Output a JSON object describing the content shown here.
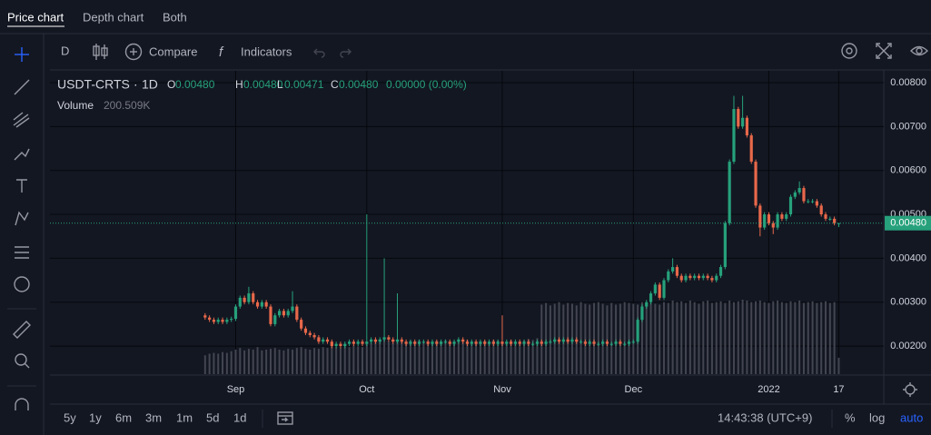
{
  "tabs": [
    "Price chart",
    "Depth chart",
    "Both"
  ],
  "toolbar": {
    "interval": "D",
    "compare": "Compare",
    "indicators": "Indicators"
  },
  "legend": {
    "symbol": "USDT-CRTS",
    "interval": "1D",
    "ohlc": [
      {
        "key": "O",
        "value": "0.00480"
      },
      {
        "key": "H",
        "value": "0.00480"
      },
      {
        "key": "L",
        "value": "0.00471"
      },
      {
        "key": "C",
        "value": "0.00480"
      }
    ],
    "change": "0.00000 (0.00%)",
    "volume_name": "Volume",
    "volume_value": "200.509K"
  },
  "chart_data": {
    "type": "candlestick",
    "open": [
      0.0027,
      0.00265,
      0.0026,
      0.00255,
      0.0026,
      0.00255,
      0.0026,
      0.00262,
      0.0029,
      0.0031,
      0.003,
      0.0032,
      0.003,
      0.0029,
      0.003,
      0.0029,
      0.0025,
      0.0027,
      0.0028,
      0.0027,
      0.0028,
      0.0029,
      0.0026,
      0.0024,
      0.0023,
      0.00225,
      0.0022,
      0.0021,
      0.00215,
      0.0021,
      0.002,
      0.00205,
      0.002,
      0.00205,
      0.0021,
      0.00205,
      0.0021,
      0.00205,
      0.0021,
      0.00215,
      0.0021,
      0.00215,
      0.0022,
      0.00215,
      0.0021,
      0.00215,
      0.0021,
      0.00205,
      0.0021,
      0.00205,
      0.0021,
      0.0021,
      0.00205,
      0.0021,
      0.00205,
      0.0021,
      0.0021,
      0.00205,
      0.0021,
      0.00215,
      0.0021,
      0.00205,
      0.0021,
      0.00205,
      0.0021,
      0.00205,
      0.0021,
      0.00205,
      0.0021,
      0.00205,
      0.0021,
      0.00205,
      0.0021,
      0.00205,
      0.0021,
      0.00205,
      0.00205,
      0.0021,
      0.00205,
      0.0021,
      0.0021,
      0.00215,
      0.0021,
      0.00215,
      0.0021,
      0.00215,
      0.0021,
      0.0021,
      0.00205,
      0.0021,
      0.00205,
      0.00205,
      0.0021,
      0.00205,
      0.00205,
      0.0021,
      0.00205,
      0.00205,
      0.0021,
      0.0021,
      0.0026,
      0.0029,
      0.003,
      0.0032,
      0.0034,
      0.0031,
      0.0035,
      0.0037,
      0.0038,
      0.0036,
      0.0035,
      0.0036,
      0.00355,
      0.0036,
      0.00355,
      0.0036,
      0.00355,
      0.0035,
      0.0036,
      0.0038,
      0.0048,
      0.0062,
      0.0074,
      0.007,
      0.0072,
      0.0068,
      0.0062,
      0.0052,
      0.0047,
      0.005,
      0.0048,
      0.0047,
      0.005,
      0.0049,
      0.005,
      0.0054,
      0.0055,
      0.0056,
      0.0053,
      0.0053,
      0.0053,
      0.0052,
      0.005,
      0.0049,
      0.0049,
      0.0048
    ],
    "high": [
      0.00275,
      0.0027,
      0.00265,
      0.00265,
      0.00265,
      0.00265,
      0.00267,
      0.00295,
      0.00315,
      0.00315,
      0.00335,
      0.00325,
      0.00305,
      0.00305,
      0.00305,
      0.00295,
      0.00275,
      0.00285,
      0.00285,
      0.00285,
      0.00325,
      0.00295,
      0.00265,
      0.00245,
      0.00235,
      0.0023,
      0.00225,
      0.0022,
      0.0022,
      0.00215,
      0.0021,
      0.0021,
      0.0021,
      0.00215,
      0.00215,
      0.00215,
      0.00215,
      0.005,
      0.0022,
      0.0022,
      0.0022,
      0.004,
      0.00225,
      0.0022,
      0.0032,
      0.0022,
      0.00215,
      0.00215,
      0.00215,
      0.00215,
      0.00215,
      0.00215,
      0.00215,
      0.00215,
      0.00215,
      0.00215,
      0.00215,
      0.00215,
      0.0022,
      0.0022,
      0.00215,
      0.00215,
      0.00215,
      0.00215,
      0.00215,
      0.00215,
      0.00215,
      0.00215,
      0.0027,
      0.00215,
      0.00215,
      0.00215,
      0.00215,
      0.00215,
      0.00215,
      0.0021,
      0.00215,
      0.00215,
      0.00215,
      0.00215,
      0.0022,
      0.0022,
      0.0022,
      0.0022,
      0.0022,
      0.0022,
      0.00215,
      0.00215,
      0.00215,
      0.00215,
      0.0021,
      0.00215,
      0.00215,
      0.0021,
      0.00215,
      0.00215,
      0.0021,
      0.00215,
      0.00215,
      0.00265,
      0.00295,
      0.00305,
      0.00325,
      0.00345,
      0.00345,
      0.00355,
      0.00375,
      0.004,
      0.00385,
      0.00365,
      0.00365,
      0.00365,
      0.00365,
      0.00365,
      0.00365,
      0.00365,
      0.0036,
      0.00365,
      0.00385,
      0.00485,
      0.00625,
      0.0077,
      0.00745,
      0.0077,
      0.00725,
      0.00685,
      0.00625,
      0.00525,
      0.00505,
      0.00505,
      0.00485,
      0.00505,
      0.00505,
      0.00505,
      0.00545,
      0.00555,
      0.00575,
      0.00565,
      0.00535,
      0.00535,
      0.00535,
      0.00525,
      0.00505,
      0.00495,
      0.00495,
      0.0048
    ],
    "low": [
      0.0026,
      0.00255,
      0.0025,
      0.0025,
      0.0025,
      0.0025,
      0.00255,
      0.00257,
      0.00285,
      0.00295,
      0.00295,
      0.00295,
      0.00285,
      0.00285,
      0.00285,
      0.00245,
      0.00245,
      0.00265,
      0.00265,
      0.00265,
      0.00275,
      0.00255,
      0.00235,
      0.00225,
      0.0022,
      0.00215,
      0.00205,
      0.00205,
      0.00205,
      0.00195,
      0.00195,
      0.00195,
      0.00195,
      0.002,
      0.002,
      0.002,
      0.002,
      0.002,
      0.00205,
      0.00205,
      0.00205,
      0.0021,
      0.0021,
      0.00205,
      0.00205,
      0.00205,
      0.002,
      0.002,
      0.002,
      0.002,
      0.00205,
      0.002,
      0.002,
      0.002,
      0.002,
      0.00205,
      0.002,
      0.002,
      0.00205,
      0.00205,
      0.002,
      0.002,
      0.002,
      0.002,
      0.002,
      0.002,
      0.002,
      0.002,
      0.002,
      0.002,
      0.002,
      0.002,
      0.002,
      0.002,
      0.002,
      0.002,
      0.002,
      0.002,
      0.002,
      0.00205,
      0.00205,
      0.00205,
      0.00205,
      0.00205,
      0.00205,
      0.00205,
      0.00205,
      0.002,
      0.002,
      0.002,
      0.002,
      0.002,
      0.002,
      0.002,
      0.002,
      0.002,
      0.002,
      0.002,
      0.00205,
      0.00205,
      0.00255,
      0.00285,
      0.00295,
      0.00315,
      0.00305,
      0.00305,
      0.00345,
      0.00365,
      0.00355,
      0.00345,
      0.00345,
      0.0035,
      0.0035,
      0.0035,
      0.0035,
      0.0035,
      0.00345,
      0.00345,
      0.00355,
      0.00375,
      0.00475,
      0.00615,
      0.00695,
      0.00695,
      0.00675,
      0.00615,
      0.00515,
      0.0045,
      0.00465,
      0.00475,
      0.00455,
      0.00465,
      0.00485,
      0.00485,
      0.00495,
      0.00535,
      0.00545,
      0.00525,
      0.00525,
      0.00525,
      0.00515,
      0.00495,
      0.00485,
      0.00485,
      0.00475,
      0.00471
    ],
    "close": [
      0.00265,
      0.0026,
      0.00255,
      0.0026,
      0.00255,
      0.0026,
      0.00262,
      0.0029,
      0.0031,
      0.003,
      0.0032,
      0.003,
      0.0029,
      0.003,
      0.0029,
      0.0025,
      0.0027,
      0.0028,
      0.0027,
      0.0028,
      0.0029,
      0.0026,
      0.0024,
      0.0023,
      0.00225,
      0.0022,
      0.0021,
      0.00215,
      0.0021,
      0.002,
      0.00205,
      0.002,
      0.00205,
      0.0021,
      0.00205,
      0.0021,
      0.00205,
      0.0021,
      0.00215,
      0.0021,
      0.00215,
      0.0022,
      0.00215,
      0.0021,
      0.00215,
      0.0021,
      0.00205,
      0.0021,
      0.00205,
      0.0021,
      0.0021,
      0.00205,
      0.0021,
      0.00205,
      0.0021,
      0.0021,
      0.00205,
      0.0021,
      0.00215,
      0.0021,
      0.00205,
      0.0021,
      0.00205,
      0.0021,
      0.00205,
      0.0021,
      0.00205,
      0.0021,
      0.00205,
      0.0021,
      0.00205,
      0.0021,
      0.00205,
      0.0021,
      0.00205,
      0.00205,
      0.0021,
      0.00205,
      0.0021,
      0.0021,
      0.00215,
      0.0021,
      0.00215,
      0.0021,
      0.00215,
      0.0021,
      0.0021,
      0.00205,
      0.0021,
      0.00205,
      0.00205,
      0.0021,
      0.00205,
      0.00205,
      0.0021,
      0.00205,
      0.00205,
      0.0021,
      0.0021,
      0.0026,
      0.0029,
      0.003,
      0.0032,
      0.0034,
      0.0031,
      0.0035,
      0.0037,
      0.0038,
      0.0036,
      0.0035,
      0.0036,
      0.00355,
      0.0036,
      0.00355,
      0.0036,
      0.00355,
      0.0035,
      0.0036,
      0.0038,
      0.0048,
      0.0062,
      0.0074,
      0.007,
      0.0072,
      0.0068,
      0.0062,
      0.0052,
      0.0047,
      0.005,
      0.0048,
      0.0047,
      0.005,
      0.0049,
      0.005,
      0.0054,
      0.0055,
      0.0056,
      0.0053,
      0.0053,
      0.0053,
      0.0052,
      0.005,
      0.0049,
      0.0049,
      0.0048,
      0.0048
    ],
    "volume": [
      230000,
      250000,
      260000,
      250000,
      270000,
      260000,
      280000,
      300000,
      320000,
      290000,
      310000,
      300000,
      330000,
      290000,
      300000,
      310000,
      320000,
      300000,
      290000,
      310000,
      300000,
      320000,
      330000,
      310000,
      300000,
      320000,
      310000,
      330000,
      320000,
      340000,
      330000,
      320000,
      340000,
      330000,
      350000,
      340000,
      330000,
      400000,
      380000,
      410000,
      390000,
      420000,
      400000,
      380000,
      410000,
      400000,
      390000,
      410000,
      400000,
      420000,
      390000,
      400000,
      380000,
      410000,
      400000,
      420000,
      390000,
      400000,
      410000,
      390000,
      420000,
      400000,
      380000,
      400000,
      410000,
      390000,
      420000,
      410000,
      400000,
      380000,
      420000,
      400000,
      390000,
      410000,
      430000,
      420000,
      440000,
      850000,
      870000,
      840000,
      860000,
      880000,
      850000,
      870000,
      860000,
      840000,
      880000,
      860000,
      850000,
      870000,
      880000,
      860000,
      840000,
      870000,
      850000,
      860000,
      880000,
      870000,
      860000,
      850000,
      880000,
      840000,
      870000,
      860000,
      850000,
      880000,
      870000,
      900000,
      880000,
      890000,
      870000,
      900000,
      880000,
      860000,
      890000,
      900000,
      870000,
      880000,
      890000,
      870000,
      900000,
      880000,
      890000,
      910000,
      900000,
      880000,
      890000,
      900000,
      880000,
      870000,
      890000,
      900000,
      880000,
      870000,
      890000,
      880000,
      900000,
      870000,
      880000,
      890000,
      870000,
      880000,
      890000,
      870000,
      880000,
      200509
    ],
    "up_color": "#26a17b",
    "down_color": "#e8684a",
    "volume_color": "#434651",
    "xlim": [
      -35.5,
      155.3
    ],
    "xticks": [
      {
        "value": 7,
        "label": "Sep"
      },
      {
        "value": 37,
        "label": "Oct"
      },
      {
        "value": 68,
        "label": "Nov"
      },
      {
        "value": 98,
        "label": "Dec"
      },
      {
        "value": 129,
        "label": "2022"
      },
      {
        "value": 145,
        "label": "17"
      }
    ],
    "ylim": [
      0.00136,
      0.00827
    ],
    "yticks": [
      {
        "value": 0.002,
        "label": "0.00200"
      },
      {
        "value": 0.003,
        "label": "0.00300"
      },
      {
        "value": 0.004,
        "label": "0.00400"
      },
      {
        "value": 0.005,
        "label": "0.00500"
      },
      {
        "value": 0.006,
        "label": "0.00600"
      },
      {
        "value": 0.007,
        "label": "0.00700"
      },
      {
        "value": 0.008,
        "label": "0.00800"
      }
    ],
    "last_price": {
      "value": 0.0048,
      "label": "0.00480"
    },
    "grid": true
  },
  "bottom": {
    "ranges": [
      "5y",
      "1y",
      "6m",
      "3m",
      "1m",
      "5d",
      "1d"
    ],
    "clock": "14:43:38 (UTC+9)",
    "scale_buttons": [
      "%",
      "log",
      "auto"
    ]
  }
}
